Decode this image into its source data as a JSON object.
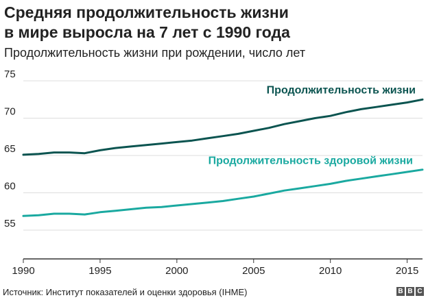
{
  "header": {
    "title_line1": "Средняя продолжительность жизни",
    "title_line2": "в мире выросла на 7 лет с 1990 года",
    "subtitle": "Продолжительность жизни при рождении, число лет"
  },
  "footer": {
    "source": "Источник: Институт показателей и оценки здоровья (IHME)",
    "logo_letters": [
      "B",
      "B",
      "C"
    ]
  },
  "colors": {
    "life_expectancy": "#0b5450",
    "healthy_life_expectancy": "#1aa9a0",
    "grid": "#dcdcdc",
    "axis": "#333333",
    "text": "#222222"
  },
  "chart_data": {
    "type": "line",
    "xlim": [
      1990,
      2016
    ],
    "ylim": [
      50,
      75
    ],
    "x_ticks": [
      1990,
      1995,
      2000,
      2005,
      2010,
      2015
    ],
    "y_ticks": [
      55,
      60,
      65,
      70,
      75
    ],
    "grid": true,
    "x": [
      1990,
      1991,
      1992,
      1993,
      1994,
      1995,
      1996,
      1997,
      1998,
      1999,
      2000,
      2001,
      2002,
      2003,
      2004,
      2005,
      2006,
      2007,
      2008,
      2009,
      2010,
      2011,
      2012,
      2013,
      2014,
      2015,
      2016
    ],
    "series": [
      {
        "name": "Продолжительность жизни",
        "color": "#0b5450",
        "values": [
          65.1,
          65.2,
          65.4,
          65.4,
          65.3,
          65.7,
          66.0,
          66.2,
          66.4,
          66.6,
          66.8,
          67.0,
          67.3,
          67.6,
          67.9,
          68.3,
          68.7,
          69.2,
          69.6,
          70.0,
          70.3,
          70.8,
          71.2,
          71.5,
          71.8,
          72.1,
          72.5
        ]
      },
      {
        "name": "Продолжительность здоровой жизни",
        "color": "#1aa9a0",
        "values": [
          56.9,
          57.0,
          57.2,
          57.2,
          57.1,
          57.4,
          57.6,
          57.8,
          58.0,
          58.1,
          58.3,
          58.5,
          58.7,
          58.9,
          59.2,
          59.5,
          59.9,
          60.3,
          60.6,
          60.9,
          61.2,
          61.6,
          61.9,
          62.2,
          62.5,
          62.8,
          63.1
        ]
      }
    ]
  }
}
